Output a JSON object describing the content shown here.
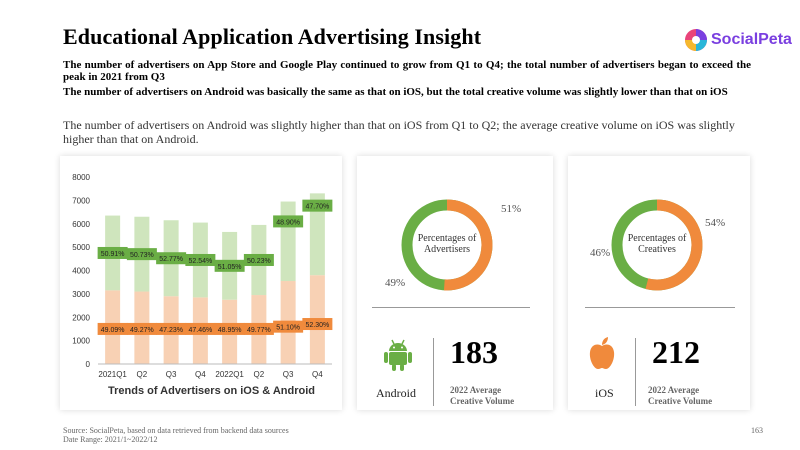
{
  "page": {
    "title": "Educational Application Advertising Insight",
    "headline1": "The number of advertisers on App Store and Google Play continued to grow from Q1 to Q4; the total number of advertisers began to exceed the peak in 2021 from Q3",
    "headline2": "The number of advertisers on Android was basically the same as that on iOS, but the total creative volume was slightly lower than that on iOS",
    "body": "The number of advertisers on Android was slightly higher than that on iOS from Q1 to Q2; the average creative volume on iOS was slightly higher than that on Android.",
    "source": "Source: SocialPeta, based on data retrieved from backend data sources",
    "date_range": "Date Range:  2021/1~2022/12",
    "page_number": "163"
  },
  "brand": {
    "name": "SocialPeta",
    "color": "#7a3fe0"
  },
  "colors": {
    "android_green": "#6aae45",
    "ios_orange": "#f08a3c",
    "bar_green": "#cfe5bd",
    "bar_orange": "#f8d1b4"
  },
  "chart_data": {
    "type": "bar",
    "title": "Trends of Advertisers on iOS & Android",
    "categories": [
      "2021Q1",
      "Q2",
      "Q3",
      "Q4",
      "2022Q1",
      "Q2",
      "Q3",
      "Q4"
    ],
    "ylim": [
      0,
      8000
    ],
    "yticks": [
      "0",
      "1000",
      "2000",
      "3000",
      "4000",
      "5000",
      "6000",
      "7000",
      "8000"
    ],
    "series": [
      {
        "values": [
          3150,
          3100,
          2900,
          2850,
          2750,
          2950,
          3550,
          3800
        ],
        "labels": [
          "49.09%",
          "49.27%",
          "47.23%",
          "47.46%",
          "48.95%",
          "49.77%",
          "51.10%",
          "52.30%"
        ]
      },
      {
        "values": [
          3200,
          3200,
          3250,
          3200,
          2900,
          3000,
          3400,
          3500
        ],
        "labels": [
          "50.91%",
          "50.73%",
          "52.77%",
          "52.54%",
          "51.05%",
          "50.23%",
          "48.90%",
          "47.70%"
        ]
      }
    ]
  },
  "android": {
    "donut_label": "Percentages of Advertisers",
    "share": 0.51,
    "pct_orange": "51%",
    "pct_green": "49%",
    "name": "Android",
    "value": "183",
    "caption": "2022 Average Creative Volume"
  },
  "ios": {
    "donut_label": "Percentages of Creatives",
    "share": 0.54,
    "pct_orange": "54%",
    "pct_green": "46%",
    "name": "iOS",
    "value": "212",
    "caption": "2022 Average Creative Volume"
  },
  "icons": [
    "socialpeta-logo-icon",
    "android-icon",
    "apple-icon"
  ]
}
